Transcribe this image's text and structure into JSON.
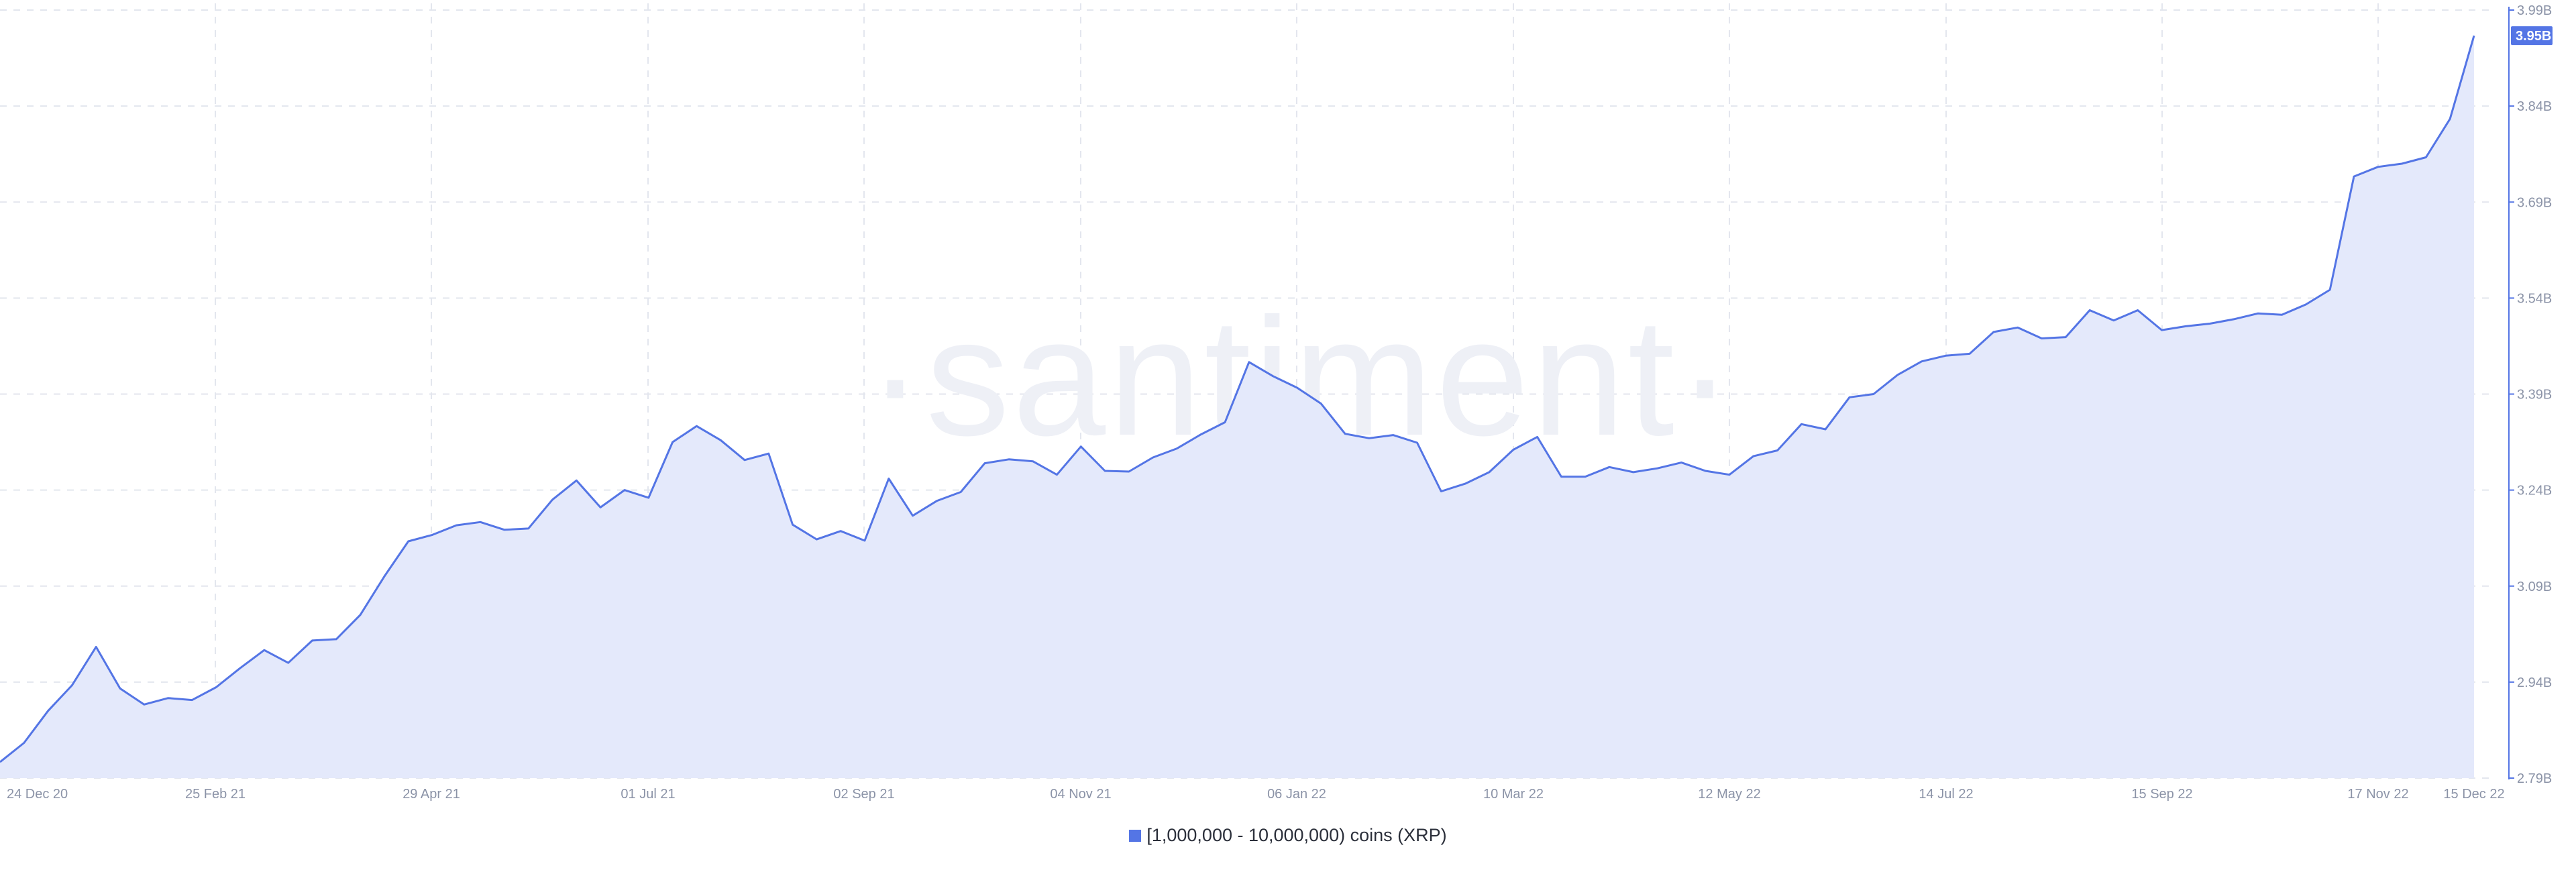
{
  "chart_data": {
    "type": "area",
    "watermark": "·santiment·",
    "x_tick_labels": [
      "24 Dec 20",
      "25 Feb 21",
      "29 Apr 21",
      "01 Jul 21",
      "02 Sep 21",
      "04 Nov 21",
      "06 Jan 22",
      "10 Mar 22",
      "12 May 22",
      "14 Jul 22",
      "15 Sep 22",
      "17 Nov 22",
      "15 Dec 22"
    ],
    "y_tick_labels": [
      "3.99B",
      "3.84B",
      "3.69B",
      "3.54B",
      "3.39B",
      "3.24B",
      "3.09B",
      "2.94B",
      "2.79B"
    ],
    "ylim": [
      2.79,
      3.99
    ],
    "current_value_label": "3.95B",
    "series": [
      {
        "name": "[1,000,000 - 10,000,000) coins (XRP)",
        "color": "#5475e5",
        "fill": "#e4e9fb",
        "x": [
          "2020-12-24",
          "2020-12-31",
          "2021-01-07",
          "2021-01-14",
          "2021-01-21",
          "2021-01-28",
          "2021-02-04",
          "2021-02-11",
          "2021-02-18",
          "2021-02-25",
          "2021-03-04",
          "2021-03-11",
          "2021-03-18",
          "2021-03-25",
          "2021-04-01",
          "2021-04-08",
          "2021-04-15",
          "2021-04-22",
          "2021-04-29",
          "2021-05-06",
          "2021-05-13",
          "2021-05-20",
          "2021-05-27",
          "2021-06-03",
          "2021-06-10",
          "2021-06-17",
          "2021-06-24",
          "2021-07-01",
          "2021-07-08",
          "2021-07-15",
          "2021-07-22",
          "2021-07-29",
          "2021-08-05",
          "2021-08-12",
          "2021-08-19",
          "2021-08-26",
          "2021-09-02",
          "2021-09-09",
          "2021-09-16",
          "2021-09-23",
          "2021-09-30",
          "2021-10-07",
          "2021-10-14",
          "2021-10-21",
          "2021-10-28",
          "2021-11-04",
          "2021-11-11",
          "2021-11-18",
          "2021-11-25",
          "2021-12-02",
          "2021-12-09",
          "2021-12-16",
          "2021-12-23",
          "2021-12-30",
          "2022-01-06",
          "2022-01-13",
          "2022-01-20",
          "2022-01-27",
          "2022-02-03",
          "2022-02-10",
          "2022-02-17",
          "2022-02-24",
          "2022-03-03",
          "2022-03-10",
          "2022-03-17",
          "2022-03-24",
          "2022-03-31",
          "2022-04-07",
          "2022-04-14",
          "2022-04-21",
          "2022-04-28",
          "2022-05-05",
          "2022-05-12",
          "2022-05-19",
          "2022-05-26",
          "2022-06-02",
          "2022-06-09",
          "2022-06-16",
          "2022-06-23",
          "2022-06-30",
          "2022-07-07",
          "2022-07-14",
          "2022-07-21",
          "2022-07-28",
          "2022-08-04",
          "2022-08-11",
          "2022-08-18",
          "2022-08-25",
          "2022-09-01",
          "2022-09-08",
          "2022-09-15",
          "2022-09-22",
          "2022-09-29",
          "2022-10-06",
          "2022-10-13",
          "2022-10-20",
          "2022-10-27",
          "2022-11-03",
          "2022-11-10",
          "2022-11-17",
          "2022-11-24",
          "2022-12-01",
          "2022-12-08",
          "2022-12-15"
        ],
        "values": [
          2.815,
          2.845,
          2.895,
          2.935,
          2.995,
          2.93,
          2.905,
          2.915,
          2.912,
          2.932,
          2.962,
          2.99,
          2.97,
          3.005,
          3.007,
          3.045,
          3.105,
          3.16,
          3.17,
          3.185,
          3.19,
          3.178,
          3.18,
          3.225,
          3.255,
          3.213,
          3.24,
          3.228,
          3.315,
          3.34,
          3.318,
          3.287,
          3.297,
          3.186,
          3.163,
          3.176,
          3.161,
          3.258,
          3.2,
          3.223,
          3.237,
          3.282,
          3.288,
          3.285,
          3.264,
          3.308,
          3.27,
          3.269,
          3.291,
          3.305,
          3.327,
          3.346,
          3.44,
          3.418,
          3.4,
          3.375,
          3.328,
          3.321,
          3.326,
          3.314,
          3.238,
          3.25,
          3.268,
          3.303,
          3.323,
          3.261,
          3.261,
          3.276,
          3.268,
          3.274,
          3.283,
          3.27,
          3.264,
          3.293,
          3.302,
          3.343,
          3.335,
          3.385,
          3.39,
          3.42,
          3.441,
          3.45,
          3.453,
          3.487,
          3.494,
          3.477,
          3.479,
          3.521,
          3.505,
          3.521,
          3.49,
          3.496,
          3.5,
          3.507,
          3.516,
          3.514,
          3.53,
          3.553,
          3.73,
          3.745,
          3.75,
          3.76,
          3.82,
          3.95
        ]
      }
    ]
  }
}
